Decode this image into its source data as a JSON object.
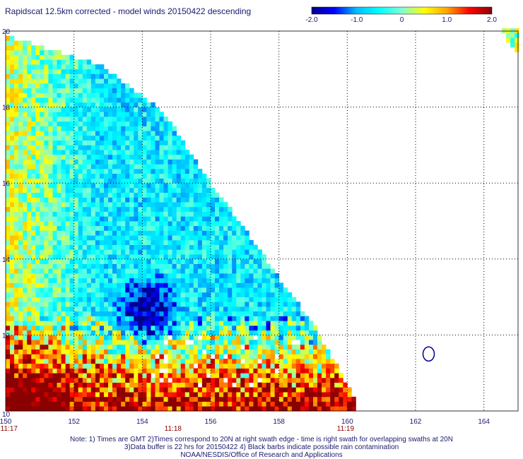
{
  "title": "Rapidscat 12.5km corrected - model winds 20150422 descending",
  "colorbar": {
    "min": -2.0,
    "max": 2.0,
    "tick_labels": [
      "-2.0",
      "-1.0",
      "0",
      "1.0",
      "2.0"
    ],
    "tick_values": [
      -2.0,
      -1.0,
      0,
      1.0,
      2.0
    ],
    "colormap": [
      "#00008b",
      "#0000ff",
      "#00bfff",
      "#00ffff",
      "#7fffd4",
      "#ffff00",
      "#ffa500",
      "#ff0000",
      "#8b0000"
    ]
  },
  "chart_data": {
    "type": "heatmap",
    "title": "Rapidscat 12.5km corrected - model winds 20150422 descending",
    "xlim": [
      150,
      165
    ],
    "ylim": [
      10,
      20
    ],
    "x_ticks": [
      "150",
      "152",
      "154",
      "156",
      "158",
      "160",
      "162",
      "164"
    ],
    "x_tick_values": [
      150,
      152,
      154,
      156,
      158,
      160,
      162,
      164
    ],
    "y_ticks": [
      "10",
      "12",
      "14",
      "16",
      "18",
      "20"
    ],
    "y_tick_values": [
      10,
      12,
      14,
      16,
      18,
      20
    ],
    "grid": true,
    "grid_style": "dotted",
    "swath_edge": [
      [
        150,
        19.9
      ],
      [
        152.8,
        19.1
      ],
      [
        154.6,
        17.9
      ],
      [
        156.0,
        16.0
      ],
      [
        157.0,
        14.8
      ],
      [
        158.0,
        13.5
      ],
      [
        159.0,
        12.3
      ],
      [
        160.3,
        10.2
      ]
    ],
    "swath_value_pattern": {
      "background_mean": -0.6,
      "left_positive_band_lon": [
        150,
        152.6
      ],
      "left_positive_band_value": 0.5,
      "strong_negative_core": {
        "lon": 154.1,
        "lat": 12.6,
        "value": -1.9
      },
      "strong_positive_band_lat": [
        10,
        12.4
      ],
      "strong_positive_band_value": 2.0
    },
    "small_corner_swath": {
      "lon": [
        164.4,
        165
      ],
      "lat": [
        19.2,
        20
      ]
    },
    "rain_contour": {
      "lon": 162.3,
      "lat": 11.5
    }
  },
  "time_labels": [
    {
      "text": "11:17",
      "lon": 150.1
    },
    {
      "text": "11:18",
      "lon": 154.9
    },
    {
      "text": "11:19",
      "lon": 159.95
    }
  ],
  "notes": {
    "line1": "Note: 1) Times are GMT 2)Times correspond to 20N at right swath edge - time is right swath for overlapping swaths at 20N",
    "line2": "3)Data buffer is 22 hrs for 20150422 4) Black barbs indicate possible rain contamination",
    "line3": "NOAA/NESDIS/Office of Research and Applications"
  }
}
